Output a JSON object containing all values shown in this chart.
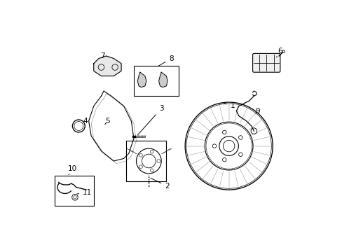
{
  "bg_color": "#ffffff",
  "line_color": "#000000",
  "fig_width": 4.89,
  "fig_height": 3.6,
  "dpi": 100,
  "label_positions": {
    "1": [
      0.745,
      0.58,
      0.7,
      0.595
    ],
    "2": [
      0.483,
      0.26,
      0.41,
      0.295
    ],
    "3": [
      0.46,
      0.57,
      0.36,
      0.458
    ],
    "4": [
      0.155,
      0.52,
      0.13,
      0.525
    ],
    "5": [
      0.245,
      0.52,
      0.23,
      0.5
    ],
    "6": [
      0.935,
      0.8,
      0.92,
      0.775
    ],
    "7": [
      0.225,
      0.78,
      0.22,
      0.765
    ],
    "8": [
      0.5,
      0.77,
      0.44,
      0.735
    ],
    "9": [
      0.845,
      0.56,
      0.83,
      0.545
    ],
    "10": [
      0.105,
      0.33,
      0.09,
      0.305
    ],
    "11": [
      0.165,
      0.235,
      0.115,
      0.227
    ]
  }
}
